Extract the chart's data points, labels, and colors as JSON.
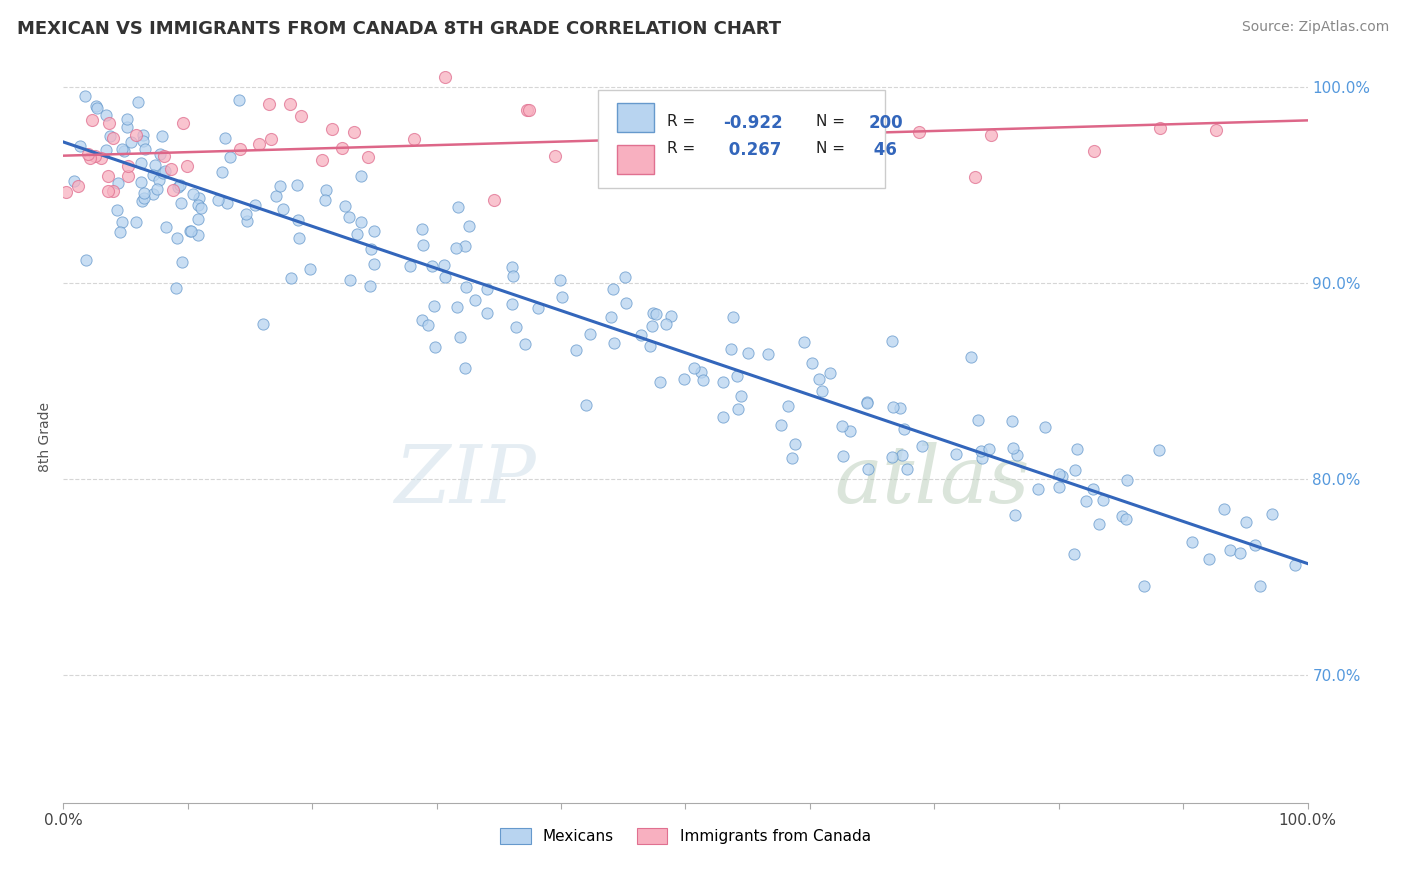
{
  "title": "MEXICAN VS IMMIGRANTS FROM CANADA 8TH GRADE CORRELATION CHART",
  "source_text": "Source: ZipAtlas.com",
  "ylabel": "8th Grade",
  "watermark_zip": "ZIP",
  "watermark_atlas": "atlas",
  "xlim": [
    0.0,
    1.0
  ],
  "ylim": [
    0.635,
    1.008
  ],
  "x_tick_labels": [
    "0.0%",
    "100.0%"
  ],
  "y_ticks": [
    0.7,
    0.8,
    0.9,
    1.0
  ],
  "y_tick_labels": [
    "70.0%",
    "80.0%",
    "90.0%",
    "100.0%"
  ],
  "legend_R_blue": "-0.922",
  "legend_N_blue": "200",
  "legend_R_pink": "0.267",
  "legend_N_pink": "46",
  "blue_fill": "#b8d4f0",
  "blue_edge": "#6699cc",
  "pink_fill": "#f8b0c0",
  "pink_edge": "#e07090",
  "trend_blue_color": "#3366bb",
  "trend_pink_color": "#dd6688",
  "blue_trend_intercept": 0.972,
  "blue_trend_slope": -0.215,
  "pink_trend_intercept": 0.965,
  "pink_trend_slope": 0.018,
  "title_fontsize": 13,
  "source_fontsize": 10,
  "tick_fontsize": 11,
  "ylabel_fontsize": 10
}
